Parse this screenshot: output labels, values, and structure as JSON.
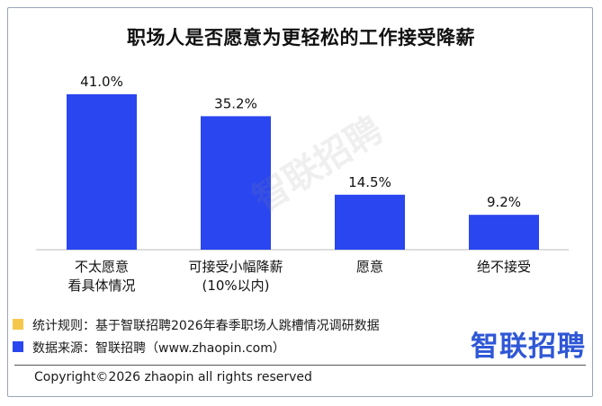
{
  "chart_data": {
    "type": "bar",
    "title": "职场人是否愿意为更轻松的工作接受降薪",
    "categories": [
      [
        "不太愿意",
        "看具体情况"
      ],
      [
        "可接受小幅降薪",
        "(10%以内)"
      ],
      [
        "愿意"
      ],
      [
        "绝不接受"
      ]
    ],
    "values": [
      41.0,
      35.2,
      14.5,
      9.2
    ],
    "value_labels": [
      "41.0%",
      "35.2%",
      "14.5%",
      "9.2%"
    ],
    "ylim": [
      0,
      45
    ],
    "bar_color": "#2a46f0",
    "grid": false
  },
  "footer": {
    "stat_rule": "统计规则：基于智联招聘2026年春季职场人跳槽情况调研数据",
    "source": "数据来源：智联招聘（www.zhaopin.com）",
    "stat_rule_color": "#f5c84c",
    "source_color": "#2a46f0"
  },
  "logo": "智联招聘",
  "watermark": "智联招聘",
  "copyright": "Copyright©2026 zhaopin all rights reserved"
}
